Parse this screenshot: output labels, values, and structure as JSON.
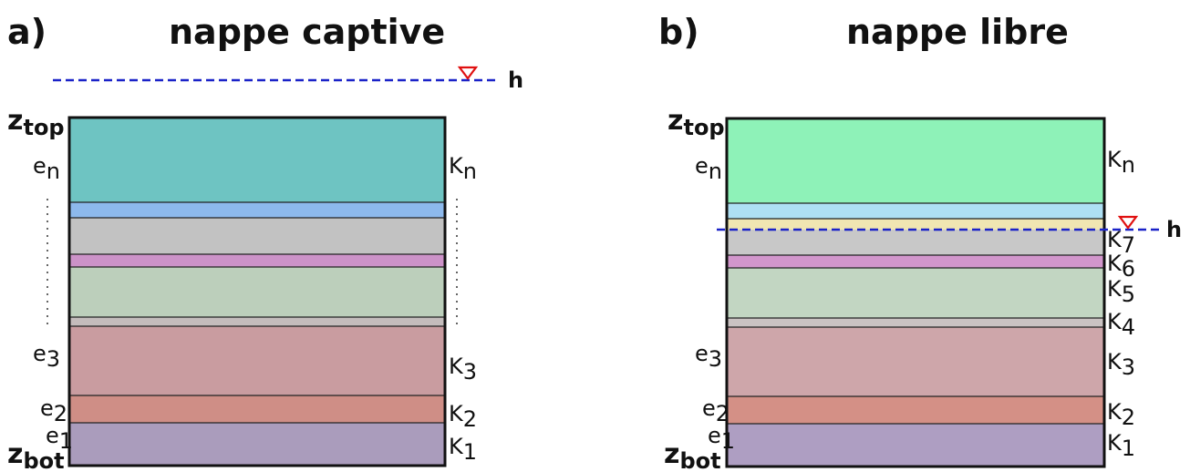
{
  "colors": {
    "water_line": "#1a22c8",
    "water_marker": "#e01010",
    "frame": "#111111",
    "layer_divider": "#222222"
  },
  "panel_a": {
    "letter": "a)",
    "title": "nappe captive",
    "water_label": "h",
    "z_top": {
      "base": "z",
      "sub": "top"
    },
    "z_bot": {
      "base": "z",
      "sub": "bot"
    },
    "left_labels": [
      {
        "base": "e",
        "sub": "n"
      },
      {
        "base": "e",
        "sub": "3"
      },
      {
        "base": "e",
        "sub": "2"
      },
      {
        "base": "e",
        "sub": "1"
      }
    ],
    "right_labels": [
      {
        "base": "K",
        "sub": "n"
      },
      {
        "base": "K",
        "sub": "3"
      },
      {
        "base": "K",
        "sub": "2"
      },
      {
        "base": "K",
        "sub": "1"
      }
    ],
    "layer_colors": [
      "#6ec4c2",
      "#8db9ec",
      "#c2c2c2",
      "#cc92c8",
      "#bccfbb",
      "#c4bcbc",
      "#c99ca0",
      "#cf8e86",
      "#aa9cbc"
    ]
  },
  "panel_b": {
    "letter": "b)",
    "title": "nappe libre",
    "water_label": "h",
    "z_top": {
      "base": "z",
      "sub": "top"
    },
    "z_bot": {
      "base": "z",
      "sub": "bot"
    },
    "left_labels": [
      {
        "base": "e",
        "sub": "n"
      },
      {
        "base": "e",
        "sub": "3"
      },
      {
        "base": "e",
        "sub": "2"
      },
      {
        "base": "e",
        "sub": "1"
      }
    ],
    "right_labels": [
      {
        "base": "K",
        "sub": "n"
      },
      {
        "base": "K",
        "sub": "7"
      },
      {
        "base": "K",
        "sub": "6"
      },
      {
        "base": "K",
        "sub": "5"
      },
      {
        "base": "K",
        "sub": "4"
      },
      {
        "base": "K",
        "sub": "3"
      },
      {
        "base": "K",
        "sub": "2"
      },
      {
        "base": "K",
        "sub": "1"
      }
    ],
    "layer_colors": [
      "#8ef2b8",
      "#aee0f4",
      "#f0e6b2",
      "#c8c8c8",
      "#d296cc",
      "#c2d6c2",
      "#cac2c2",
      "#cea6aa",
      "#d49086",
      "#ae9ec2"
    ]
  }
}
